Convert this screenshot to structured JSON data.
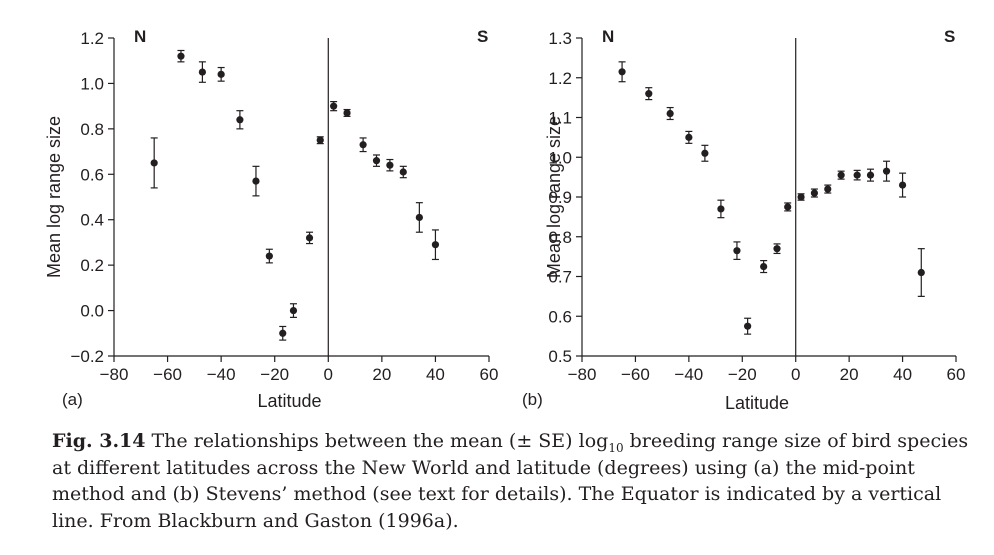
{
  "caption": {
    "label": "Fig. 3.14",
    "before_log": "The relationships between the mean (± SE) log",
    "log_sub": "10",
    "after_log": " breeding range size of bird species at different latitudes across the New World and latitude (degrees) using (a) the mid-point method and (b) Stevens’ method (see text for details). The Equator is indicated by a vertical line. From Blackburn and Gaston (1996a)."
  },
  "chart_data": [
    {
      "type": "scatter",
      "panel_label": "(a)",
      "xlabel": "Latitude",
      "ylabel": "Mean log range size",
      "xlim": [
        -80,
        60
      ],
      "ylim": [
        -0.2,
        1.2
      ],
      "xticks": [
        -80,
        -60,
        -40,
        -20,
        0,
        20,
        40,
        60
      ],
      "yticks": [
        -0.2,
        0.0,
        0.2,
        0.4,
        0.6,
        0.8,
        1.0,
        1.2
      ],
      "ytick_labels": [
        "−0.2",
        "0.0",
        "0.2",
        "0.4",
        "0.6",
        "0.8",
        "1.0",
        "1.2"
      ],
      "xtick_labels": [
        "−80",
        "−60",
        "−40",
        "−20",
        "0",
        "20",
        "40",
        "60"
      ],
      "equator_line": 0,
      "corner_labels": {
        "left": "N",
        "right": "S"
      },
      "points": [
        {
          "x": -65,
          "y": 0.65,
          "se": 0.11
        },
        {
          "x": -55,
          "y": 1.12,
          "se": 0.025
        },
        {
          "x": -47,
          "y": 1.05,
          "se": 0.045
        },
        {
          "x": -40,
          "y": 1.04,
          "se": 0.03
        },
        {
          "x": -33,
          "y": 0.84,
          "se": 0.04
        },
        {
          "x": -27,
          "y": 0.57,
          "se": 0.065
        },
        {
          "x": -22,
          "y": 0.24,
          "se": 0.03
        },
        {
          "x": -17,
          "y": -0.1,
          "se": 0.03
        },
        {
          "x": -13,
          "y": 0.0,
          "se": 0.03
        },
        {
          "x": -7,
          "y": 0.32,
          "se": 0.025
        },
        {
          "x": -3,
          "y": 0.75,
          "se": 0.015
        },
        {
          "x": 2,
          "y": 0.9,
          "se": 0.02
        },
        {
          "x": 7,
          "y": 0.87,
          "se": 0.015
        },
        {
          "x": 13,
          "y": 0.73,
          "se": 0.03
        },
        {
          "x": 18,
          "y": 0.66,
          "se": 0.025
        },
        {
          "x": 23,
          "y": 0.64,
          "se": 0.025
        },
        {
          "x": 28,
          "y": 0.61,
          "se": 0.025
        },
        {
          "x": 34,
          "y": 0.41,
          "se": 0.065
        },
        {
          "x": 40,
          "y": 0.29,
          "se": 0.065
        }
      ]
    },
    {
      "type": "scatter",
      "panel_label": "(b)",
      "xlabel": "Latitude",
      "ylabel": "Mean log range size",
      "xlim": [
        -80,
        60
      ],
      "ylim": [
        0.5,
        1.3
      ],
      "xticks": [
        -80,
        -60,
        -40,
        -20,
        0,
        20,
        40,
        60
      ],
      "yticks": [
        0.5,
        0.6,
        0.7,
        0.8,
        0.9,
        1.0,
        1.1,
        1.2,
        1.3
      ],
      "ytick_labels": [
        "0.5",
        "0.6",
        "0.7",
        "0.8",
        "0.9",
        "1.0",
        "1.1",
        "1.2",
        "1.3"
      ],
      "xtick_labels": [
        "−80",
        "−60",
        "−40",
        "−20",
        "0",
        "20",
        "40",
        "60"
      ],
      "equator_line": 0,
      "corner_labels": {
        "left": "N",
        "right": "S"
      },
      "points": [
        {
          "x": -65,
          "y": 1.215,
          "se": 0.025
        },
        {
          "x": -55,
          "y": 1.16,
          "se": 0.015
        },
        {
          "x": -47,
          "y": 1.11,
          "se": 0.015
        },
        {
          "x": -40,
          "y": 1.05,
          "se": 0.015
        },
        {
          "x": -34,
          "y": 1.01,
          "se": 0.02
        },
        {
          "x": -28,
          "y": 0.87,
          "se": 0.022
        },
        {
          "x": -22,
          "y": 0.765,
          "se": 0.022
        },
        {
          "x": -18,
          "y": 0.575,
          "se": 0.02
        },
        {
          "x": -12,
          "y": 0.725,
          "se": 0.015
        },
        {
          "x": -7,
          "y": 0.77,
          "se": 0.012
        },
        {
          "x": -3,
          "y": 0.875,
          "se": 0.01
        },
        {
          "x": 2,
          "y": 0.9,
          "se": 0.008
        },
        {
          "x": 7,
          "y": 0.91,
          "se": 0.01
        },
        {
          "x": 12,
          "y": 0.92,
          "se": 0.01
        },
        {
          "x": 17,
          "y": 0.955,
          "se": 0.01
        },
        {
          "x": 23,
          "y": 0.955,
          "se": 0.012
        },
        {
          "x": 28,
          "y": 0.955,
          "se": 0.015
        },
        {
          "x": 34,
          "y": 0.965,
          "se": 0.025
        },
        {
          "x": 40,
          "y": 0.93,
          "se": 0.03
        },
        {
          "x": 47,
          "y": 0.71,
          "se": 0.06
        }
      ]
    }
  ]
}
